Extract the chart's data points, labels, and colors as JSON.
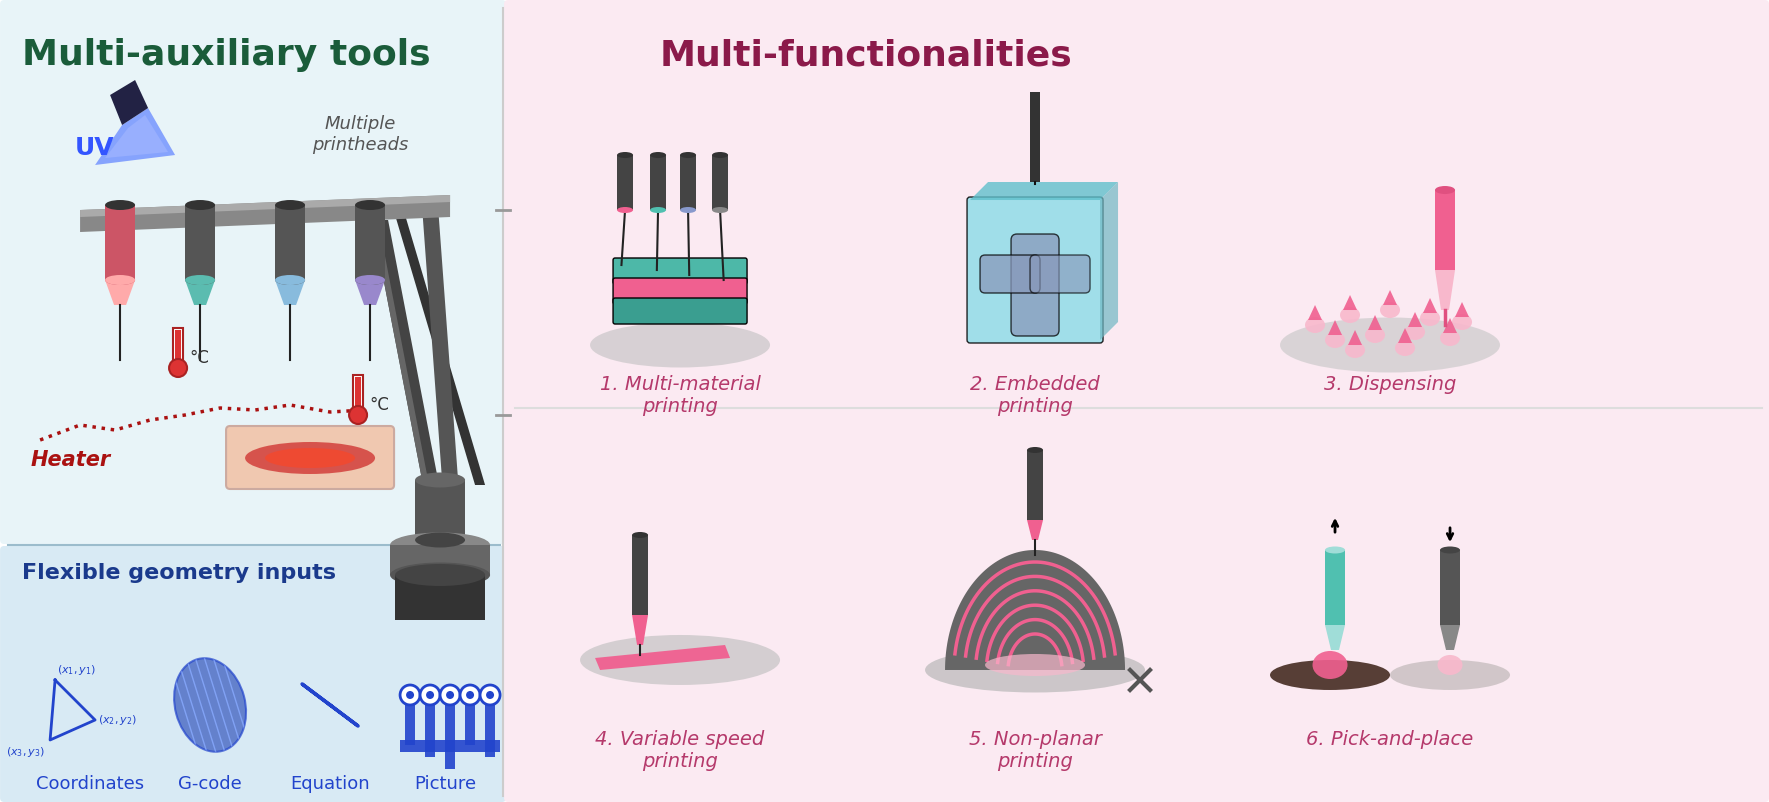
{
  "bg_left": "#e8f4f8",
  "bg_right": "#fbeaf2",
  "bg_bottom_left": "#d8eaf4",
  "title_left": "Multi-auxiliary tools",
  "title_left_color": "#1a5c3a",
  "title_right": "Multi-functionalities",
  "title_right_color": "#8b1a4a",
  "subtitle_flexible": "Flexible geometry inputs",
  "subtitle_flexible_color": "#1a3a8c",
  "labels_geo": [
    "Coordinates",
    "G-code",
    "Equation",
    "Picture"
  ],
  "labels_func": [
    "1. Multi-material\nprinting",
    "2. Embedded\nprinting",
    "3. Dispensing",
    "4. Variable speed\nprinting",
    "5. Non-planar\nprinting",
    "6. Pick-and-place"
  ],
  "labels_func_color": "#b5396b",
  "uv_label": "UV",
  "uv_color": "#3355ff",
  "heater_label": "Heater",
  "heater_color": "#aa1111",
  "printheads_label": "Multiple\nprintheads",
  "printheads_color": "#555555",
  "gray_dark": "#4a4a4a",
  "gray_mid": "#888888",
  "gray_light": "#bbbbbb",
  "pink_main": "#f06090",
  "pink_light": "#f8b8cc",
  "pink_tip": "#e05080",
  "teal_main": "#50c0b0",
  "teal_light": "#a0ddd8",
  "blue_geo": "#2244cc",
  "cyan_light": "#90dce8",
  "cyan_mid": "#60c0cc"
}
